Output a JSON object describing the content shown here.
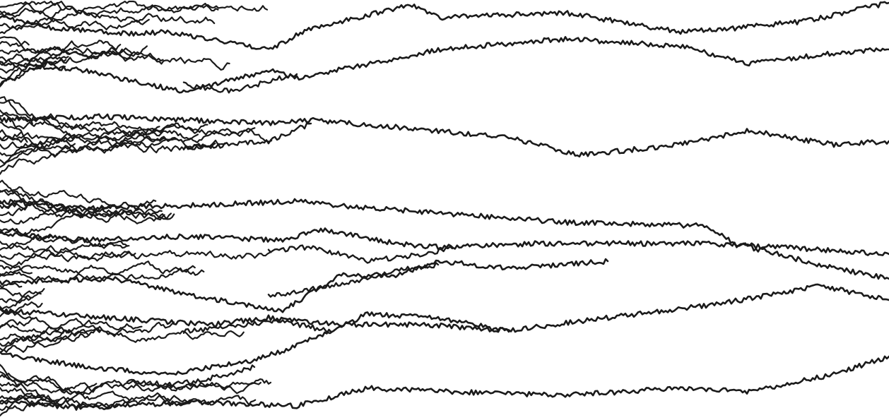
{
  "diagram": {
    "kind": "coalescing random walks",
    "stroke_color": "#1a1a1a",
    "background_color": "#ffffff",
    "n_starting_walks": 64,
    "n_final_lineages": 9,
    "orientation": "left-to-right"
  }
}
